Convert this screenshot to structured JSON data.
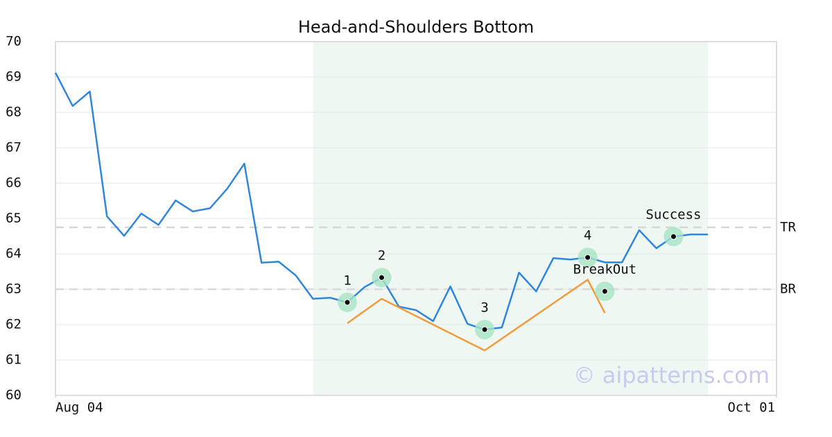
{
  "chart_data": {
    "type": "line",
    "title": "Head-and-Shoulders Bottom",
    "x": [
      0,
      1,
      2,
      3,
      4,
      5,
      6,
      7,
      8,
      9,
      10,
      11,
      12,
      13,
      14,
      15,
      16,
      17,
      18,
      19,
      20,
      21,
      22,
      23,
      24,
      25,
      26,
      27,
      28,
      29,
      30,
      31,
      32,
      33,
      34,
      35,
      36,
      37,
      38
    ],
    "series": [
      {
        "color": "#2e86de",
        "values": [
          69.12,
          68.18,
          68.59,
          65.06,
          64.51,
          65.14,
          64.82,
          65.51,
          65.2,
          65.29,
          65.84,
          66.55,
          63.75,
          63.78,
          63.39,
          62.73,
          62.76,
          62.63,
          63.06,
          63.33,
          62.51,
          62.41,
          62.1,
          63.08,
          62.02,
          61.86,
          61.92,
          63.47,
          62.94,
          63.88,
          63.84,
          63.9,
          63.76,
          63.76,
          64.67,
          64.16,
          64.49,
          64.55,
          64.55
        ]
      },
      {
        "color": "#f39a3c",
        "x": [
          17,
          19,
          25,
          31,
          32
        ],
        "values": [
          62.04,
          62.73,
          61.27,
          63.27,
          62.33
        ]
      }
    ],
    "annotations": [
      {
        "label": "1",
        "x": 17,
        "y": 62.63
      },
      {
        "label": "2",
        "x": 19,
        "y": 63.33
      },
      {
        "label": "3",
        "x": 25,
        "y": 61.86
      },
      {
        "label": "4",
        "x": 31,
        "y": 63.9
      },
      {
        "label": "BreakOut",
        "x": 32,
        "y": 62.94
      },
      {
        "label": "Success",
        "x": 36,
        "y": 64.49
      }
    ],
    "hlines": [
      {
        "label": "TR",
        "value": 64.75
      },
      {
        "label": "BR",
        "value": 63
      }
    ],
    "highlight_x": [
      15,
      38
    ],
    "xlim": [
      0,
      42
    ],
    "xticks": [
      {
        "value": 0,
        "label": "Aug 04"
      },
      {
        "value": 42,
        "label": "Oct 01"
      }
    ],
    "ylim": [
      60,
      70
    ],
    "yticks": [
      60,
      61,
      62,
      63,
      64,
      65,
      66,
      67,
      68,
      69,
      70
    ],
    "grid": true,
    "watermark": "© aipatterns.com"
  }
}
